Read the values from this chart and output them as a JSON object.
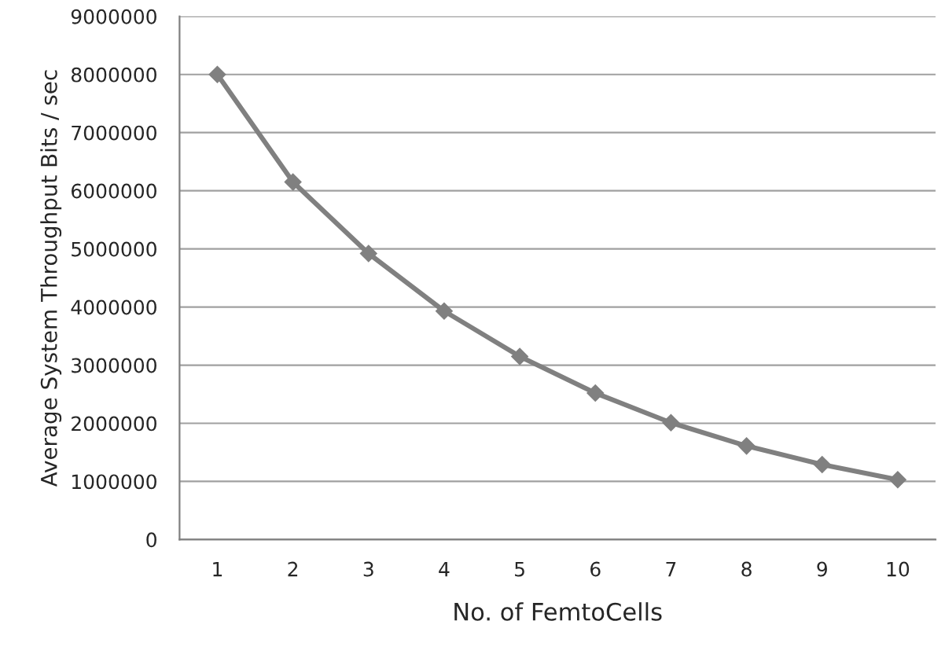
{
  "chart_data": {
    "type": "line",
    "xlabel": "No. of FemtoCells",
    "ylabel": "Average System Throughput Bits / sec",
    "categories": [
      "1",
      "2",
      "3",
      "4",
      "5",
      "6",
      "7",
      "8",
      "9",
      "10"
    ],
    "series": [
      {
        "color": "#808080",
        "values": [
          8000000,
          6150000,
          4920000,
          3930000,
          3150000,
          2520000,
          2010000,
          1610000,
          1290000,
          1030000
        ]
      }
    ],
    "ylim": [
      0,
      9000000
    ],
    "yticks": [
      0,
      1000000,
      2000000,
      3000000,
      4000000,
      5000000,
      6000000,
      7000000,
      8000000,
      9000000
    ],
    "grid": "y",
    "marker": "diamond",
    "line_style": "solid"
  }
}
